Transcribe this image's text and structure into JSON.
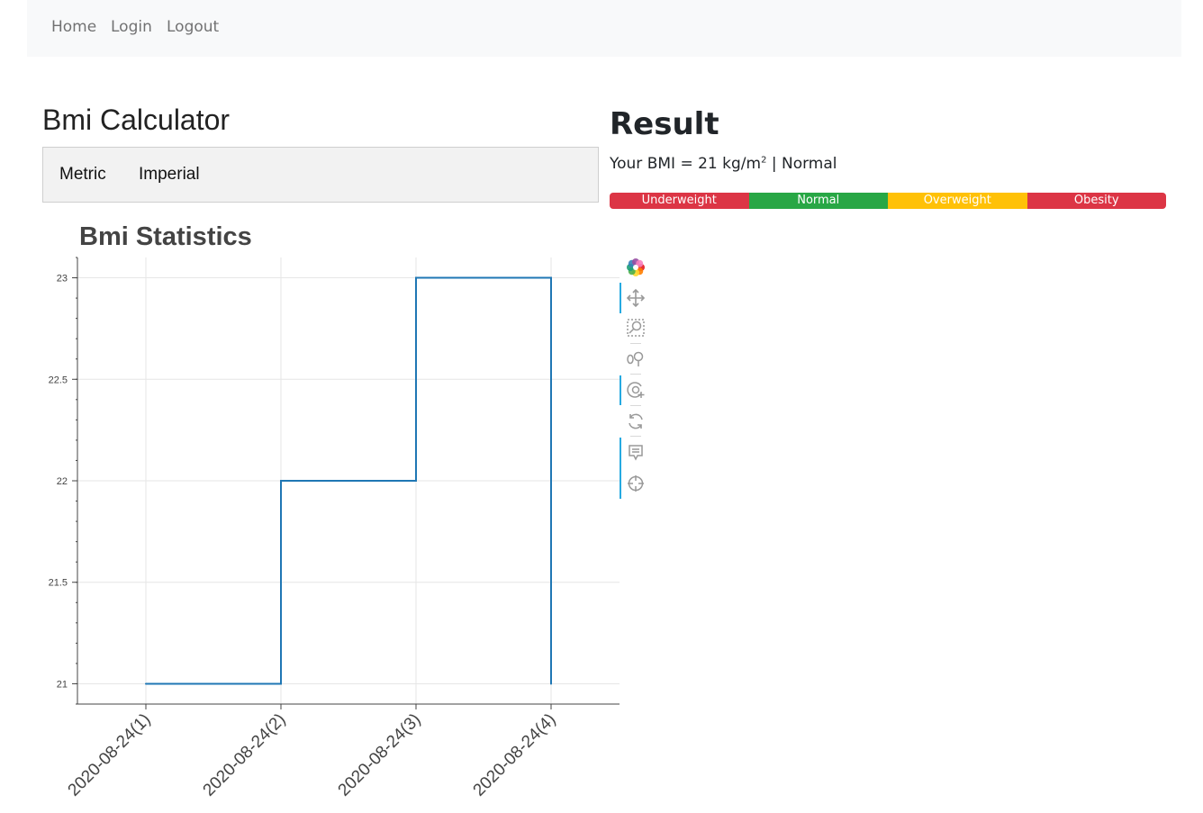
{
  "nav": {
    "items": [
      {
        "label": "Home"
      },
      {
        "label": "Login"
      },
      {
        "label": "Logout"
      }
    ]
  },
  "calculator": {
    "title": "Bmi Calculator",
    "tabs": [
      {
        "label": "Metric"
      },
      {
        "label": "Imperial"
      }
    ]
  },
  "result": {
    "title": "Result",
    "prefix": "Your BMI = ",
    "value": "21",
    "unit": " kg/m",
    "unit_sup": "2",
    "separator": " | ",
    "category": "Normal",
    "scale": [
      {
        "label": "Underweight",
        "color": "#dc3545"
      },
      {
        "label": "Normal",
        "color": "#28a745"
      },
      {
        "label": "Overweight",
        "color": "#ffc107"
      },
      {
        "label": "Obesity",
        "color": "#dc3545"
      }
    ]
  },
  "chart_data": {
    "type": "line",
    "step": true,
    "title": "Bmi Statistics",
    "xlabel": "",
    "ylabel": "",
    "categories": [
      "2020-08-24(1)",
      "2020-08-24(2)",
      "2020-08-24(3)",
      "2020-08-24(4)"
    ],
    "values": [
      21,
      22,
      23,
      21
    ],
    "ylim": [
      20.9,
      23.1
    ],
    "yticks": [
      21,
      21.5,
      22,
      22.5,
      23
    ],
    "ytick_labels": [
      "21",
      "21.5",
      "22",
      "22.5",
      "23"
    ],
    "grid": true,
    "line_color": "#1f77b4"
  },
  "toolbar": {
    "tools": [
      {
        "name": "bokeh-logo-icon",
        "active": false
      },
      {
        "name": "pan-icon",
        "active": true
      },
      {
        "name": "box-zoom-icon",
        "active": false
      },
      {
        "name": "wheel-zoom-icon",
        "active": false
      },
      {
        "name": "zoom-in-icon",
        "active": true
      },
      {
        "name": "reset-icon",
        "active": false
      },
      {
        "name": "hover-icon",
        "active": true
      },
      {
        "name": "crosshair-icon",
        "active": true
      }
    ]
  }
}
